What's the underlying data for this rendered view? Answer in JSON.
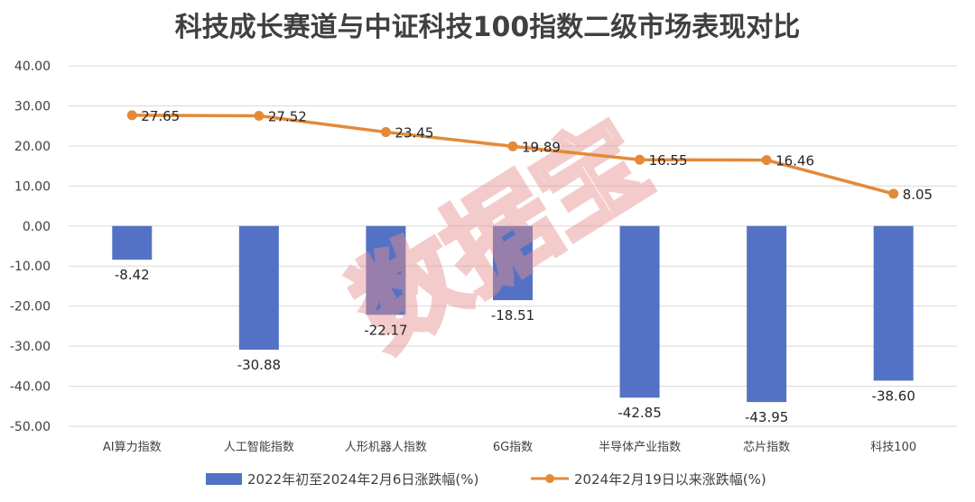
{
  "chart_data": {
    "type": "bar",
    "title": "科技成长赛道与中证科技100指数二级市场表现对比",
    "categories": [
      "AI算力指数",
      "人工智能指数",
      "人形机器人指数",
      "6G指数",
      "半导体产业指数",
      "芯片指数",
      "科技100"
    ],
    "series": [
      {
        "name": "2022年初至2024年2月6日涨跌幅(%)",
        "type": "bar",
        "color": "#5472c5",
        "values": [
          -8.42,
          -30.88,
          -22.17,
          -18.51,
          -42.85,
          -43.95,
          -38.6
        ],
        "labels": [
          "-8.42",
          "-30.88",
          "-22.17",
          "-18.51",
          "-42.85",
          "-43.95",
          "-38.60"
        ]
      },
      {
        "name": "2024年2月19日以来涨跌幅(%)",
        "type": "line",
        "color": "#e38a3a",
        "values": [
          27.65,
          27.52,
          23.45,
          19.89,
          16.55,
          16.46,
          8.05
        ],
        "labels": [
          "27.65",
          "27.52",
          "23.45",
          "19.89",
          "16.55",
          "16.46",
          "8.05"
        ]
      }
    ],
    "ylim": [
      -50,
      40
    ],
    "yticks": [
      "40.00",
      "30.00",
      "20.00",
      "10.00",
      "0.00",
      "-10.00",
      "-20.00",
      "-30.00",
      "-40.00",
      "-50.00"
    ],
    "grid": true,
    "legend_position": "bottom",
    "watermark": "数据宝"
  }
}
